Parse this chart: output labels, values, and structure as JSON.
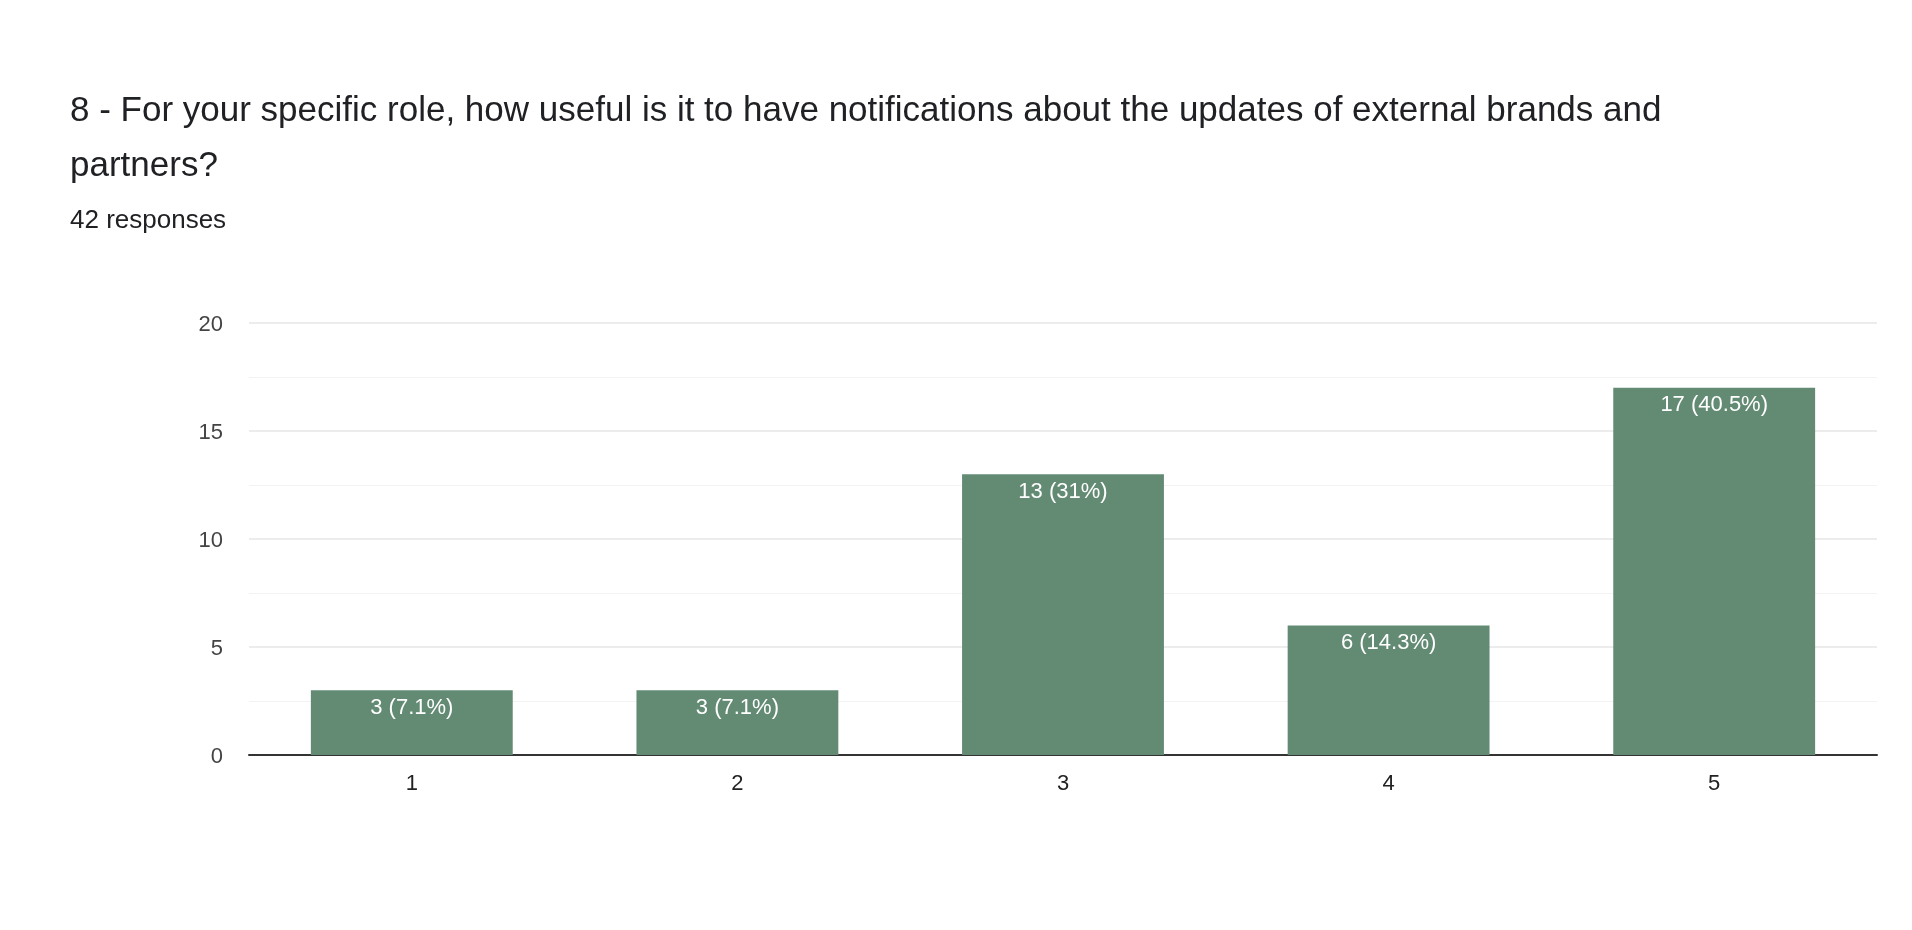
{
  "chart_data": {
    "type": "bar",
    "title": "8 - For your specific role, how useful is it to have notifications about the updates of external brands and partners?",
    "subtitle": "42 responses",
    "categories": [
      "1",
      "2",
      "3",
      "4",
      "5"
    ],
    "values": [
      3,
      3,
      13,
      6,
      17
    ],
    "value_labels": [
      "3 (7.1%)",
      "3 (7.1%)",
      "13 (31%)",
      "6 (14.3%)",
      "17 (40.5%)"
    ],
    "color": "#638b74",
    "ylim": [
      0,
      20
    ],
    "yticks": [
      0,
      5,
      10,
      15,
      20
    ],
    "grid": "y"
  }
}
